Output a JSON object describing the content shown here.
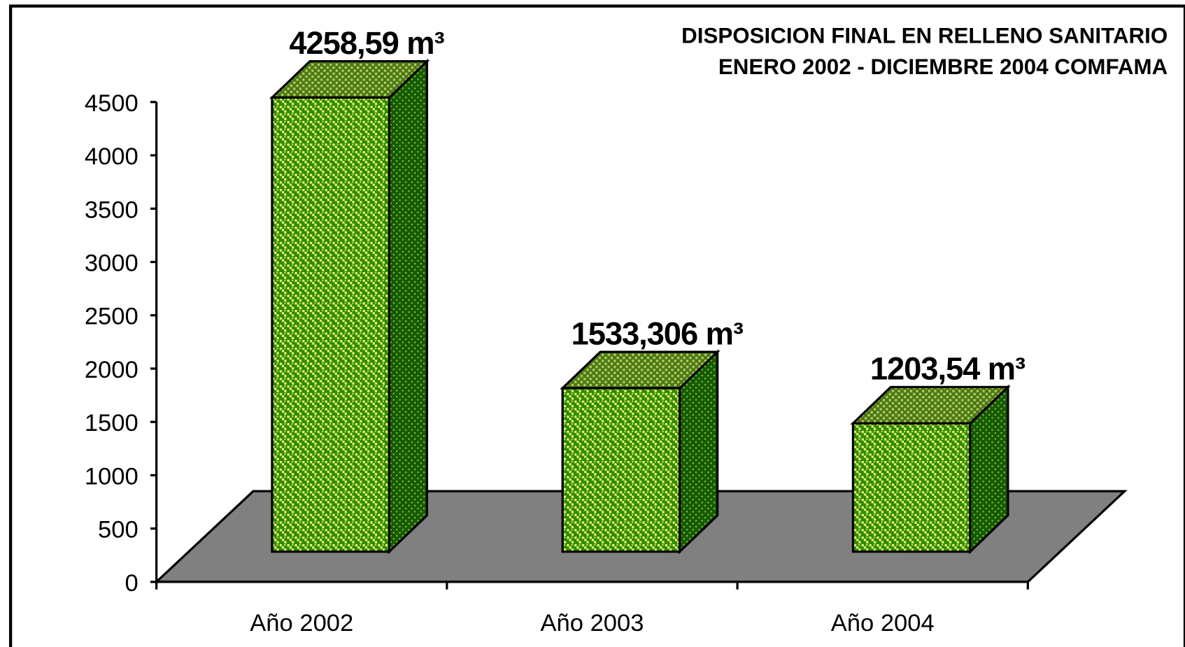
{
  "chart_data": {
    "type": "bar3d",
    "title": "DISPOSICION FINAL  EN RELLENO SANITARIO",
    "subtitle": "ENERO 2002 - DICIEMBRE 2004 COMFAMA",
    "categories": [
      "Año 2002",
      "Año 2003",
      "Año 2004"
    ],
    "values": [
      4258.59,
      1533.306,
      1203.54
    ],
    "value_labels": [
      "4258,59 m³",
      "1533,306 m³",
      "1203,54 m³"
    ],
    "color": "#2e8b00",
    "floor_color": "#808080",
    "ylim": [
      0,
      4500
    ],
    "yticks": [
      0,
      500,
      1000,
      1500,
      2000,
      2500,
      3000,
      3500,
      4000,
      4500
    ]
  }
}
